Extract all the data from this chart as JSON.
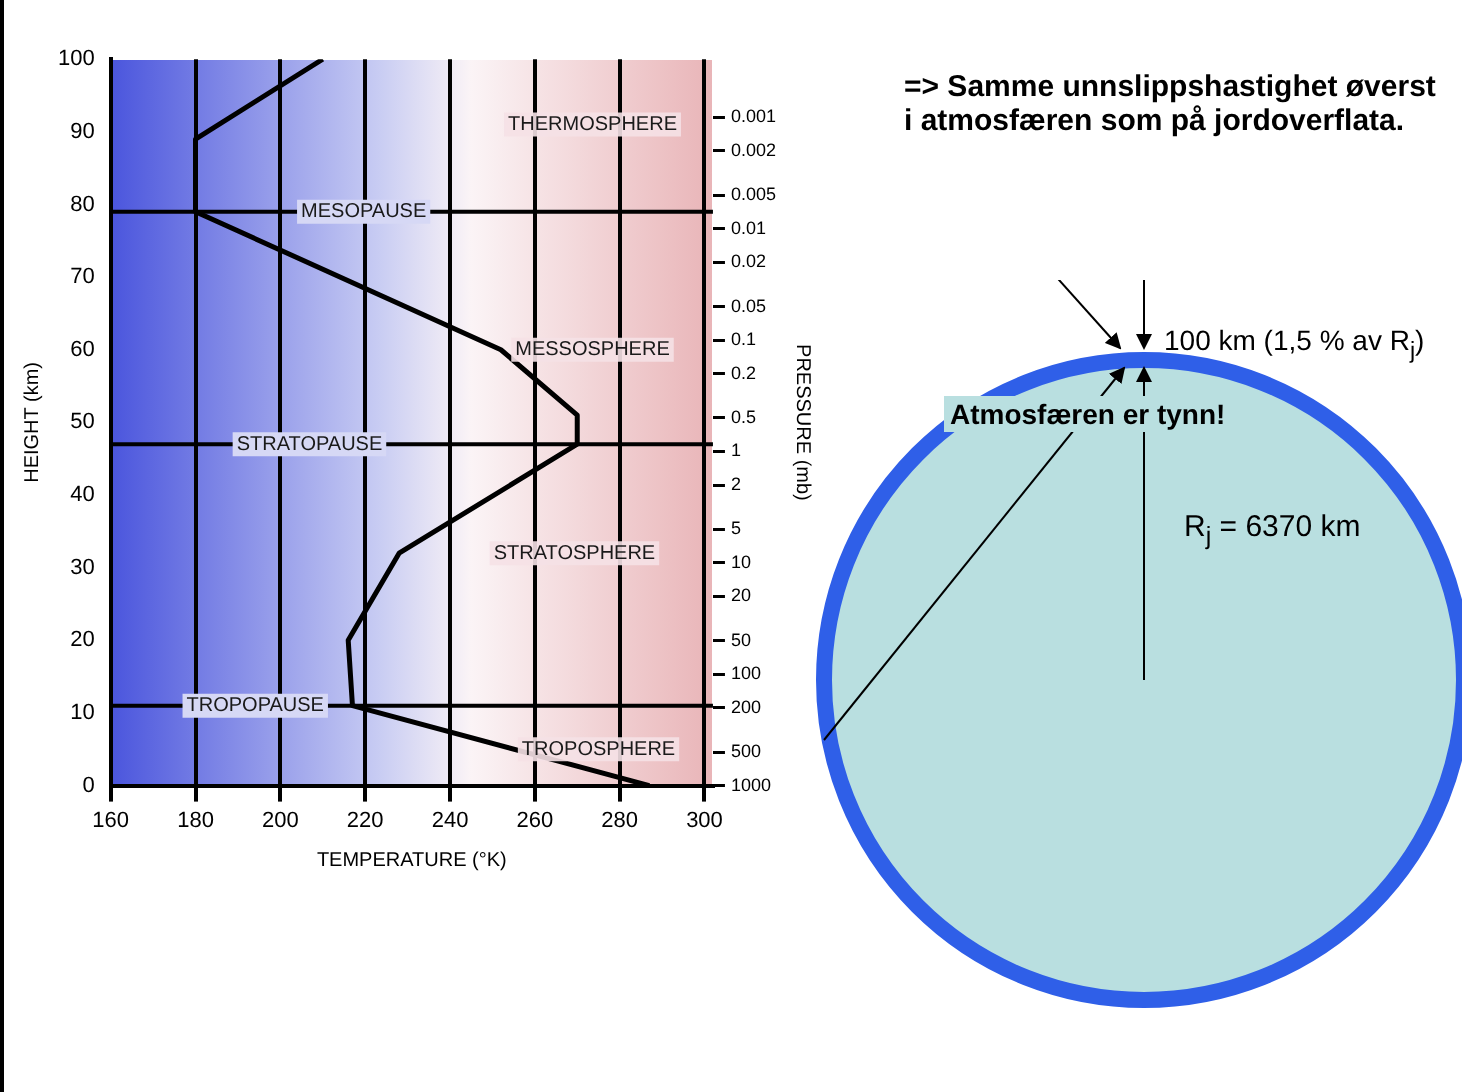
{
  "chart_data": {
    "type": "line",
    "xlabel": "TEMPERATURE (°K)",
    "ylabel": "HEIGHT (km)",
    "y2label": "PRESSURE (mb)",
    "xlim": [
      160,
      302
    ],
    "xticks": [
      160,
      180,
      200,
      220,
      240,
      260,
      280,
      300
    ],
    "ylim": [
      0,
      100
    ],
    "yticks": [
      0,
      10,
      20,
      30,
      40,
      50,
      60,
      70,
      80,
      90,
      100
    ],
    "y2lim": [
      1000,
      0.0003
    ],
    "y2ticks": [
      0.001,
      0.002,
      0.005,
      0.01,
      0.02,
      0.05,
      0.1,
      0.2,
      0.5,
      1,
      2,
      5,
      10,
      20,
      50,
      100,
      200,
      500,
      1000
    ],
    "grid": "x",
    "marker": "none",
    "line_style": "solid",
    "log": "y2",
    "series": [
      {
        "color": "#000000",
        "x": [
          287,
          217,
          216,
          228,
          270,
          270,
          252,
          180,
          180,
          210
        ],
        "values": [
          0,
          11,
          20,
          32,
          47,
          51,
          60,
          79,
          89,
          100
        ]
      }
    ],
    "ref_lines": [
      {
        "axis": "y",
        "value": 79,
        "label": "MESOPAUSE",
        "color": "#000000"
      },
      {
        "axis": "y",
        "value": 47,
        "label": "STRATOPAUSE",
        "color": "#000000"
      },
      {
        "axis": "y",
        "value": 11,
        "label": "TROPOPAUSE",
        "color": "#000000"
      }
    ],
    "annotations": [
      "THERMOSPHERE",
      "MESSOSPHERE",
      "STRATOSPHERE",
      "TROPOSPHERE",
      "=> Samme unnslippshastighet øverst i atmosfæren som på jordoverflata.",
      "100 km   (1,5 % av R$_{j}$)",
      "Atmosfæren er tynn!",
      "R$_{j}$ = 6370 km"
    ]
  }
}
